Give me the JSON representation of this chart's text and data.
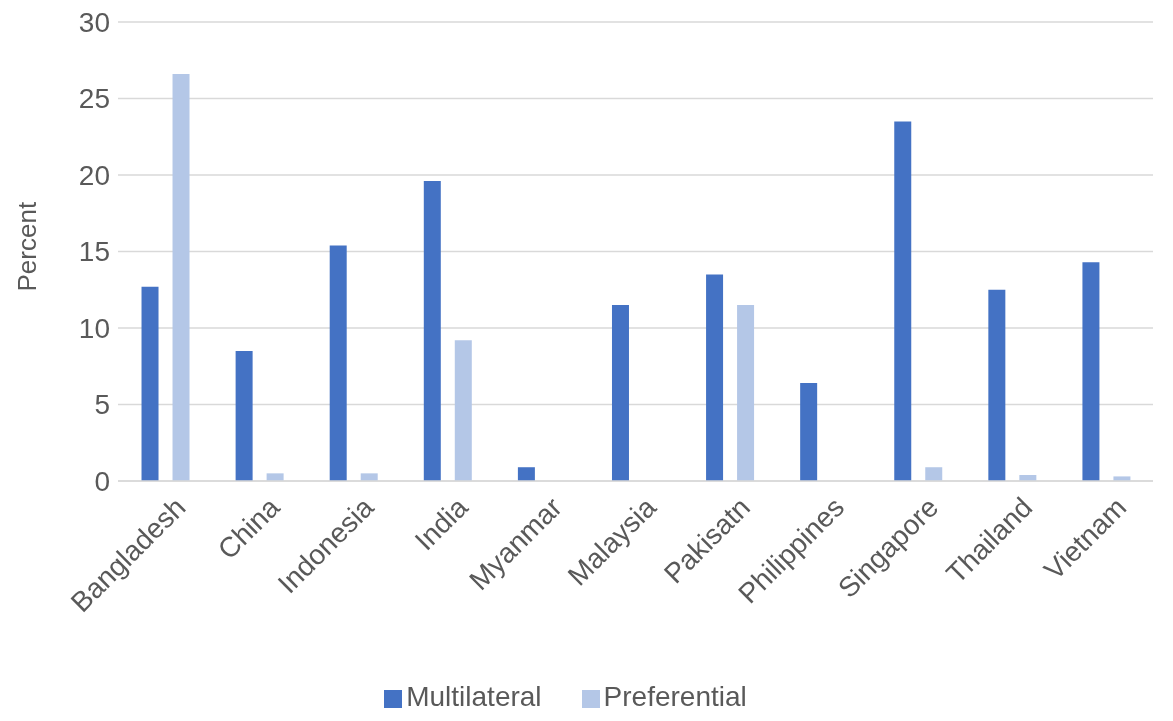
{
  "chart_data": {
    "type": "bar",
    "ylabel": "Percent",
    "categories": [
      "Bangladesh",
      "China",
      "Indonesia",
      "India",
      "Myanmar",
      "Malaysia",
      "Pakisatn",
      "Philippines",
      "Singapore",
      "Thailand",
      "Vietnam"
    ],
    "series": [
      {
        "name": "Multilateral",
        "color": "#4472c4",
        "values": [
          12.7,
          8.5,
          15.4,
          19.6,
          0.9,
          11.5,
          13.5,
          6.4,
          23.5,
          12.5,
          14.3
        ]
      },
      {
        "name": "Preferential",
        "color": "#b4c7e7",
        "values": [
          26.6,
          0.5,
          0.5,
          9.2,
          0,
          0,
          11.5,
          0,
          0.9,
          0.4,
          0.3
        ]
      }
    ],
    "ylim": [
      0,
      30
    ],
    "yticks": [
      0,
      5,
      10,
      15,
      20,
      25,
      30
    ],
    "grid": "y",
    "legend": "bottom"
  }
}
